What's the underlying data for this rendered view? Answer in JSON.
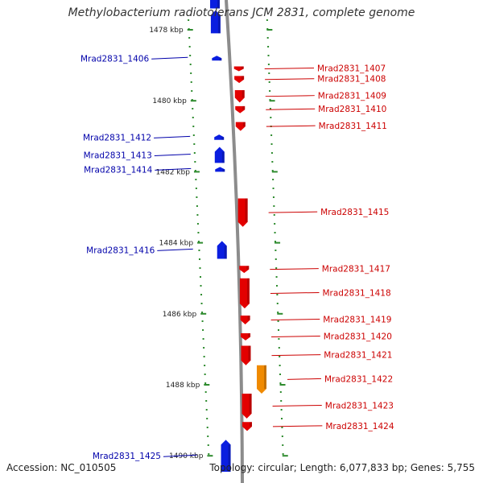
{
  "title": "Methylobacterium radiotolerans JCM 2831, complete genome",
  "footer": {
    "accession": "Accession: NC_010505",
    "summary": "Topology: circular; Length: 6,077,833 bp; Genes: 5,755"
  },
  "colors": {
    "forward_gene": "#e30000",
    "reverse_gene": "#0a1ee0",
    "highlight_gene": "#f08a00",
    "forward_label": "#cc0000",
    "reverse_label": "#0000aa",
    "backbone": "#8c8c8c",
    "tick": "#2e8b2e"
  },
  "scale": {
    "unit": "kbp",
    "ticks": [
      {
        "value": 1478,
        "label": "1478 kbp"
      },
      {
        "value": 1480,
        "label": "1480 kbp"
      },
      {
        "value": 1482,
        "label": "1482 kbp"
      },
      {
        "value": 1484,
        "label": "1484 kbp"
      },
      {
        "value": 1486,
        "label": "1486 kbp"
      },
      {
        "value": 1488,
        "label": "1488 kbp"
      },
      {
        "value": 1490,
        "label": "1490 kbp"
      }
    ]
  },
  "genes": [
    {
      "name": "Mrad2831_1406",
      "strand": "reverse",
      "start": 1478.75,
      "end": 1478.85
    },
    {
      "name": "Mrad2831_1407",
      "strand": "forward",
      "start": 1479.05,
      "end": 1479.15
    },
    {
      "name": "Mrad2831_1408",
      "strand": "forward",
      "start": 1479.3,
      "end": 1479.5
    },
    {
      "name": "Mrad2831_1409",
      "strand": "forward",
      "start": 1479.7,
      "end": 1480.05
    },
    {
      "name": "Mrad2831_1410",
      "strand": "forward",
      "start": 1480.15,
      "end": 1480.35
    },
    {
      "name": "Mrad2831_1411",
      "strand": "forward",
      "start": 1480.6,
      "end": 1480.85
    },
    {
      "name": "Mrad2831_1412",
      "strand": "reverse",
      "start": 1480.95,
      "end": 1481.1
    },
    {
      "name": "Mrad2831_1413",
      "strand": "reverse",
      "start": 1481.3,
      "end": 1481.75
    },
    {
      "name": "Mrad2831_1414",
      "strand": "reverse",
      "start": 1481.88,
      "end": 1481.98
    },
    {
      "name": "Mrad2831_1415",
      "strand": "forward",
      "start": 1482.75,
      "end": 1483.55
    },
    {
      "name": "Mrad2831_1416",
      "strand": "reverse",
      "start": 1483.95,
      "end": 1484.45
    },
    {
      "name": "Mrad2831_1417",
      "strand": "forward",
      "start": 1484.65,
      "end": 1484.85
    },
    {
      "name": "Mrad2831_1418",
      "strand": "forward",
      "start": 1485.0,
      "end": 1485.85
    },
    {
      "name": "Mrad2831_1419",
      "strand": "forward",
      "start": 1486.05,
      "end": 1486.3
    },
    {
      "name": "Mrad2831_1420",
      "strand": "forward",
      "start": 1486.55,
      "end": 1486.75
    },
    {
      "name": "Mrad2831_1421",
      "strand": "forward",
      "start": 1486.9,
      "end": 1487.45
    },
    {
      "name": "Mrad2831_1422",
      "strand": "forward",
      "start": 1487.45,
      "end": 1488.25,
      "highlight": true
    },
    {
      "name": "Mrad2831_1423",
      "strand": "forward",
      "start": 1488.25,
      "end": 1488.95
    },
    {
      "name": "Mrad2831_1424",
      "strand": "forward",
      "start": 1489.05,
      "end": 1489.3
    },
    {
      "name": "Mrad2831_1425",
      "strand": "reverse",
      "start": 1489.55,
      "end": 1490.45
    }
  ],
  "unlabeled_genes": [
    {
      "strand": "reverse",
      "start": 1476.9,
      "end": 1477.4
    },
    {
      "strand": "reverse",
      "start": 1477.45,
      "end": 1478.1
    }
  ]
}
